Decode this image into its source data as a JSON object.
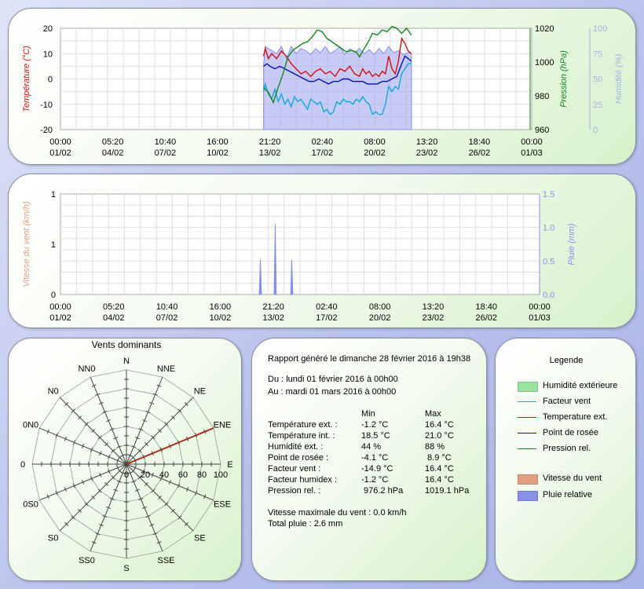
{
  "colors": {
    "temperature": "#d01010",
    "windchill": "#10a8e0",
    "dewpoint": "#0010c0",
    "pressure": "#108818",
    "humidity_fill": "#9aa0ec",
    "humidity_line": "#8a90e8",
    "humidity_axis": "#a8b0e8",
    "wind_speed": "#e0a080",
    "rain": "#8890e8",
    "rose_line": "#a03020"
  },
  "x_axis": {
    "ticks": [
      {
        "time": "00:00",
        "date": "01/02"
      },
      {
        "time": "05:20",
        "date": "04/02"
      },
      {
        "time": "10:40",
        "date": "07/02"
      },
      {
        "time": "16:00",
        "date": "10/02"
      },
      {
        "time": "21:20",
        "date": "13/02"
      },
      {
        "time": "02:40",
        "date": "17/02"
      },
      {
        "time": "08:00",
        "date": "20/02"
      },
      {
        "time": "13:20",
        "date": "23/02"
      },
      {
        "time": "18:40",
        "date": "26/02"
      },
      {
        "time": "00:00",
        "date": "01/03"
      }
    ],
    "range_days": [
      0,
      29
    ]
  },
  "chart_data": [
    {
      "type": "line",
      "x_unit": "days since 01/02 00:00",
      "y_left": {
        "label": "Température (°C)",
        "ticks": [
          "20",
          "10",
          "0",
          "-10",
          "-20"
        ],
        "range": [
          -20,
          20
        ]
      },
      "y_right1": {
        "label": "Pression (hPa)",
        "ticks": [
          "1020",
          "1000",
          "980",
          "960"
        ],
        "range": [
          960,
          1020
        ]
      },
      "y_right2": {
        "label": "Humidité (%)",
        "ticks": [
          "100",
          "75",
          "50",
          "25",
          "0"
        ],
        "range": [
          0,
          100
        ]
      },
      "grid": true,
      "series": [
        {
          "name": "Humidité extérieure",
          "type": "area",
          "axis": "humidity",
          "points": [
            [
              12.5,
              64
            ],
            [
              12.6,
              82
            ],
            [
              12.8,
              80
            ],
            [
              13.0,
              78
            ],
            [
              13.3,
              75
            ],
            [
              13.6,
              82
            ],
            [
              13.9,
              70
            ],
            [
              14.2,
              82
            ],
            [
              14.5,
              75
            ],
            [
              14.8,
              80
            ],
            [
              15.1,
              78
            ],
            [
              15.4,
              74
            ],
            [
              15.7,
              80
            ],
            [
              16.0,
              76
            ],
            [
              16.3,
              82
            ],
            [
              16.6,
              75
            ],
            [
              16.9,
              78
            ],
            [
              17.2,
              82
            ],
            [
              17.5,
              74
            ],
            [
              17.8,
              80
            ],
            [
              18.1,
              76
            ],
            [
              18.4,
              80
            ],
            [
              18.7,
              75
            ],
            [
              19.0,
              79
            ],
            [
              19.3,
              74
            ],
            [
              19.6,
              80
            ],
            [
              19.9,
              75
            ],
            [
              20.2,
              82
            ],
            [
              20.5,
              76
            ],
            [
              20.8,
              78
            ],
            [
              21.1,
              74
            ],
            [
              21.4,
              76
            ],
            [
              21.6,
              75
            ]
          ]
        },
        {
          "name": "Facteur vent",
          "type": "line",
          "axis": "temperature",
          "points": [
            [
              12.5,
              -5
            ],
            [
              12.6,
              -2
            ],
            [
              12.8,
              -6
            ],
            [
              13.0,
              -8
            ],
            [
              13.2,
              -4
            ],
            [
              13.4,
              -9
            ],
            [
              13.6,
              -6
            ],
            [
              13.8,
              -10
            ],
            [
              14.0,
              -8
            ],
            [
              14.2,
              -11
            ],
            [
              14.4,
              -7
            ],
            [
              14.6,
              -9
            ],
            [
              14.8,
              -8
            ],
            [
              15.0,
              -10
            ],
            [
              15.2,
              -12
            ],
            [
              15.4,
              -8
            ],
            [
              15.6,
              -9
            ],
            [
              15.8,
              -10
            ],
            [
              16.0,
              -9
            ],
            [
              16.2,
              -13
            ],
            [
              16.4,
              -12
            ],
            [
              16.6,
              -14
            ],
            [
              16.8,
              -13
            ],
            [
              17.0,
              -9
            ],
            [
              17.2,
              -10
            ],
            [
              17.4,
              -8
            ],
            [
              17.6,
              -9
            ],
            [
              17.8,
              -9
            ],
            [
              18.0,
              -10
            ],
            [
              18.2,
              -8
            ],
            [
              18.4,
              -9
            ],
            [
              18.6,
              -7
            ],
            [
              18.8,
              -9
            ],
            [
              19.0,
              -10
            ],
            [
              19.2,
              -14
            ],
            [
              19.4,
              -13
            ],
            [
              19.6,
              -14
            ],
            [
              19.8,
              -14
            ],
            [
              19.9,
              -12
            ],
            [
              20.0,
              -10
            ],
            [
              20.2,
              -3
            ],
            [
              20.4,
              -5
            ],
            [
              20.6,
              -3
            ],
            [
              20.8,
              -4
            ],
            [
              21.0,
              2
            ],
            [
              21.2,
              4
            ],
            [
              21.4,
              6
            ],
            [
              21.6,
              6
            ]
          ]
        },
        {
          "name": "Temperature ext.",
          "type": "line",
          "axis": "temperature",
          "points": [
            [
              12.5,
              9
            ],
            [
              12.6,
              12
            ],
            [
              12.8,
              8
            ],
            [
              13.0,
              10
            ],
            [
              13.3,
              8
            ],
            [
              13.6,
              11
            ],
            [
              13.9,
              9
            ],
            [
              14.2,
              6
            ],
            [
              14.5,
              4
            ],
            [
              14.8,
              2
            ],
            [
              15.1,
              3
            ],
            [
              15.4,
              1
            ],
            [
              15.7,
              3
            ],
            [
              16.0,
              4
            ],
            [
              16.3,
              2
            ],
            [
              16.6,
              3
            ],
            [
              16.9,
              1
            ],
            [
              17.2,
              4
            ],
            [
              17.5,
              3
            ],
            [
              17.8,
              5
            ],
            [
              18.1,
              2
            ],
            [
              18.4,
              1
            ],
            [
              18.6,
              4
            ],
            [
              18.8,
              2
            ],
            [
              19.0,
              3
            ],
            [
              19.2,
              1
            ],
            [
              19.4,
              2
            ],
            [
              19.6,
              1
            ],
            [
              19.8,
              3
            ],
            [
              20.0,
              2
            ],
            [
              20.2,
              9
            ],
            [
              20.4,
              4
            ],
            [
              20.6,
              2
            ],
            [
              20.8,
              7
            ],
            [
              21.0,
              16
            ],
            [
              21.2,
              14
            ],
            [
              21.4,
              11
            ],
            [
              21.6,
              10
            ]
          ]
        },
        {
          "name": "Point de rosée",
          "type": "line",
          "axis": "temperature",
          "points": [
            [
              12.5,
              5
            ],
            [
              12.7,
              6
            ],
            [
              12.9,
              5
            ],
            [
              13.2,
              4
            ],
            [
              13.5,
              5
            ],
            [
              13.8,
              4
            ],
            [
              14.1,
              3
            ],
            [
              14.4,
              2
            ],
            [
              14.7,
              1
            ],
            [
              15.0,
              0
            ],
            [
              15.3,
              -1
            ],
            [
              15.6,
              -1
            ],
            [
              15.9,
              0
            ],
            [
              16.2,
              -1
            ],
            [
              16.5,
              -2
            ],
            [
              16.8,
              -1
            ],
            [
              17.1,
              -1
            ],
            [
              17.4,
              0
            ],
            [
              17.7,
              0
            ],
            [
              18.0,
              -1
            ],
            [
              18.3,
              -1
            ],
            [
              18.6,
              -1
            ],
            [
              18.9,
              -2
            ],
            [
              19.2,
              -2
            ],
            [
              19.5,
              -2
            ],
            [
              19.8,
              -1
            ],
            [
              20.1,
              -1
            ],
            [
              20.4,
              0
            ],
            [
              20.7,
              1
            ],
            [
              21.0,
              6
            ],
            [
              21.2,
              9
            ],
            [
              21.4,
              8
            ],
            [
              21.6,
              7
            ]
          ]
        },
        {
          "name": "Pression rel.",
          "type": "line",
          "axis": "pressure",
          "points": [
            [
              12.5,
              985
            ],
            [
              12.8,
              982
            ],
            [
              13.1,
              976
            ],
            [
              13.4,
              985
            ],
            [
              13.7,
              993
            ],
            [
              14.0,
              1003
            ],
            [
              14.3,
              1007
            ],
            [
              14.6,
              1009
            ],
            [
              14.9,
              1011
            ],
            [
              15.2,
              1012
            ],
            [
              15.5,
              1015
            ],
            [
              15.8,
              1019
            ],
            [
              16.1,
              1018
            ],
            [
              16.4,
              1014
            ],
            [
              16.7,
              1012
            ],
            [
              17.0,
              1010
            ],
            [
              17.3,
              1008
            ],
            [
              17.6,
              1006
            ],
            [
              17.9,
              1007
            ],
            [
              18.2,
              1006
            ],
            [
              18.4,
              1003
            ],
            [
              18.7,
              1008
            ],
            [
              19.0,
              1013
            ],
            [
              19.2,
              1017
            ],
            [
              19.5,
              1016
            ],
            [
              19.8,
              1019
            ],
            [
              20.1,
              1018
            ],
            [
              20.4,
              1021
            ],
            [
              20.7,
              1020
            ],
            [
              21.0,
              1017
            ],
            [
              21.3,
              1020
            ],
            [
              21.6,
              1016
            ]
          ]
        }
      ]
    },
    {
      "type": "bar",
      "x_unit": "days since 01/02 00:00",
      "y_left": {
        "label": "Vitesse du vent (km/h)",
        "ticks": [
          "1",
          "1",
          "0"
        ],
        "range": [
          0,
          2
        ]
      },
      "y_right": {
        "label": "Pluie (mm)",
        "ticks": [
          "1.5",
          "1.0",
          "0.5",
          "0.0"
        ],
        "range": [
          0,
          1.5
        ]
      },
      "grid": true,
      "series": [
        {
          "name": "Pluie relative",
          "points": [
            [
              12.1,
              0.52
            ],
            [
              13.0,
              1.05
            ],
            [
              14.0,
              0.52
            ]
          ]
        },
        {
          "name": "Vitesse du vent",
          "points": []
        }
      ]
    },
    {
      "type": "polar",
      "title": "Vents dominants",
      "directions": [
        "N",
        "NNE",
        "NE",
        "ENE",
        "E",
        "ESE",
        "SE",
        "SSE",
        "S",
        "SS0",
        "S0",
        "0S0",
        "0",
        "0N0",
        "N0",
        "NN0"
      ],
      "radial_ticks": [
        "0",
        "20",
        "40",
        "60",
        "80",
        "100"
      ],
      "radial_range": [
        0,
        100
      ],
      "values": [
        0,
        0,
        0,
        100,
        0,
        0,
        0,
        0,
        0,
        0,
        0,
        0,
        0,
        0,
        0,
        0
      ]
    }
  ],
  "wind_rose": {
    "title": "Vents dominants"
  },
  "report": {
    "header": "Rapport généré le dimanche 28 février 2016 à 19h38",
    "period_from": "Du : lundi 01 février 2016 à 00h00",
    "period_to": "Au : mardi 01 mars 2016 à 00h00",
    "col_min": "Min",
    "col_max": "Max",
    "rows": [
      {
        "label": "Température ext. :",
        "min": "-1.2 °C",
        "max": "16.4 °C"
      },
      {
        "label": "Température int. :",
        "min": "18.5 °C",
        "max": "21.0 °C"
      },
      {
        "label": "Humidité ext. :",
        "min": "44 %",
        "max": "88 %"
      },
      {
        "label": "Point de rosée :",
        "min": "-4.1 °C",
        "max": " 8.9 °C"
      },
      {
        "label": "Facteur vent :",
        "min": "-14.9 °C",
        "max": "16.4 °C"
      },
      {
        "label": "Facteur humidex :",
        "min": "-1.2 °C",
        "max": "16.4 °C"
      },
      {
        "label": "Pression rel. :",
        "min": " 976.2 hPa",
        "max": "1019.1 hPa"
      }
    ],
    "max_wind": "Vitesse maximale du vent : 0.0 km/h",
    "total_rain": "Total pluie : 2.6 mm"
  },
  "legend": {
    "title": "Legende",
    "items": [
      {
        "label": "Humidité extérieure",
        "kind": "area",
        "color": "#9ae0a0"
      },
      {
        "label": "Facteur vent",
        "kind": "line",
        "color": "#10a8e0"
      },
      {
        "label": "Temperature ext.",
        "kind": "line",
        "color": "#d01010"
      },
      {
        "label": "Point de rosée",
        "kind": "line",
        "color": "#0010c0"
      },
      {
        "label": "Pression rel.",
        "kind": "line",
        "color": "#108818"
      },
      {
        "label": "Vitesse du vent",
        "kind": "area",
        "color": "#e0a080"
      },
      {
        "label": "Pluie relative",
        "kind": "area",
        "color": "#8890e8"
      }
    ]
  }
}
